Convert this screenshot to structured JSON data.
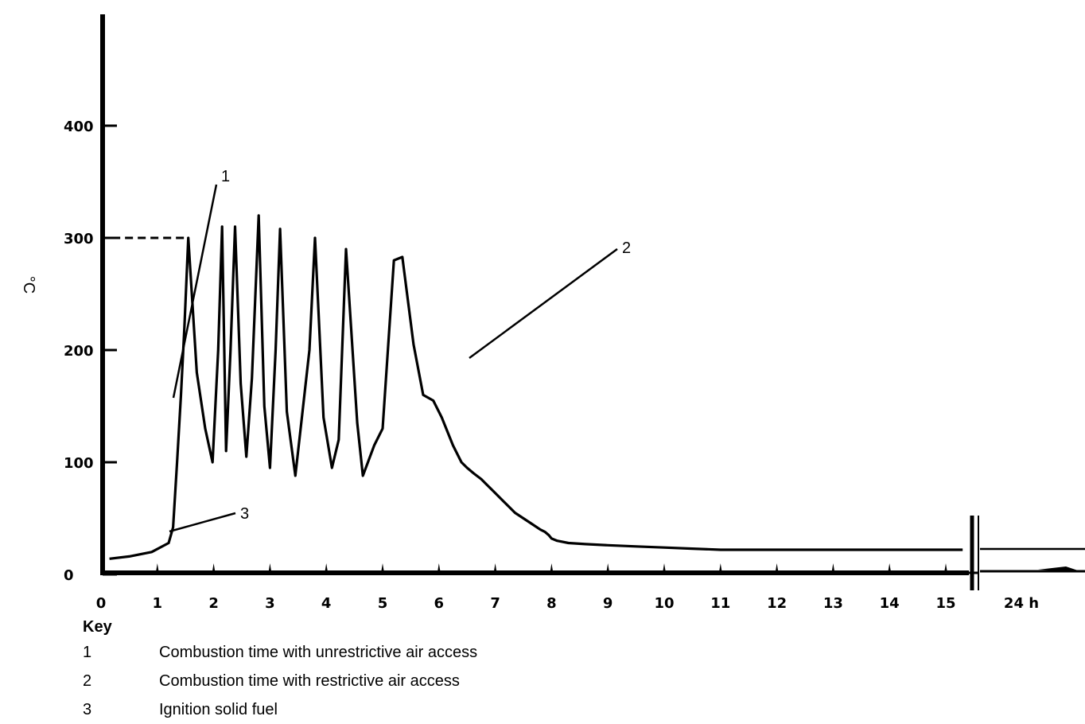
{
  "chart_data": {
    "type": "line",
    "ylabel": "°C",
    "xlabel": "",
    "x_ticks": [
      "0",
      "1",
      "2",
      "3",
      "4",
      "5",
      "6",
      "7",
      "8",
      "9",
      "10",
      "11",
      "12",
      "13",
      "14",
      "15",
      "24 h"
    ],
    "y_ticks": [
      "0",
      "100",
      "200",
      "300",
      "400"
    ],
    "ylim": [
      0,
      500
    ],
    "xlim": [
      0,
      15
    ],
    "grid": false,
    "series": [
      {
        "x": [
          0.15,
          0.5,
          0.9,
          1.2,
          1.28,
          1.35,
          1.42,
          1.48,
          1.55,
          1.7,
          1.85,
          1.98,
          2.08,
          2.15,
          2.22,
          2.3,
          2.38,
          2.48,
          2.58,
          2.68,
          2.8,
          2.9,
          3.0,
          3.1,
          3.18,
          3.3,
          3.45,
          3.7,
          3.8,
          3.95,
          4.1,
          4.22,
          4.35,
          4.55,
          4.65,
          4.85,
          5.0,
          5.2,
          5.35,
          5.55,
          5.72,
          5.9,
          6.05,
          6.25,
          6.4,
          6.5,
          6.62,
          6.75,
          6.85,
          6.95,
          7.05,
          7.15,
          7.25,
          7.35,
          7.5,
          7.65,
          7.8,
          7.88,
          7.95,
          8.0,
          8.1,
          8.3,
          8.6,
          9.0,
          9.5,
          10.0,
          10.5,
          11.0,
          11.5,
          12.0,
          12.5,
          13.0,
          13.5,
          14.0,
          14.5,
          15.0,
          15.3
        ],
        "values": [
          14,
          16,
          20,
          28,
          42,
          100,
          160,
          220,
          300,
          180,
          130,
          100,
          200,
          310,
          110,
          200,
          310,
          170,
          105,
          175,
          320,
          150,
          95,
          200,
          308,
          145,
          88,
          200,
          300,
          140,
          95,
          120,
          290,
          135,
          88,
          115,
          130,
          280,
          283,
          205,
          160,
          155,
          140,
          115,
          100,
          95,
          90,
          85,
          80,
          75,
          70,
          65,
          60,
          55,
          50,
          45,
          40,
          38,
          35,
          32,
          30,
          28,
          27,
          26,
          25,
          24,
          23,
          22,
          22,
          22,
          22,
          22,
          22,
          22,
          22,
          22,
          22
        ]
      }
    ],
    "reference_line": {
      "y": 300,
      "x_from": 0.2,
      "x_to": 1.55
    },
    "annotations": [
      {
        "label": "1",
        "text": "Combustion time with unrestrictive air access"
      },
      {
        "label": "2",
        "text": "Combustion time with restrictive air access"
      },
      {
        "label": "3",
        "text": "Ignition solid fuel"
      }
    ]
  },
  "key": {
    "title": "Key",
    "items": [
      {
        "num": "1",
        "text": "Combustion time with unrestrictive air access"
      },
      {
        "num": "2",
        "text": "Combustion time with restrictive air access"
      },
      {
        "num": "3",
        "text": "Ignition solid fuel"
      }
    ]
  }
}
